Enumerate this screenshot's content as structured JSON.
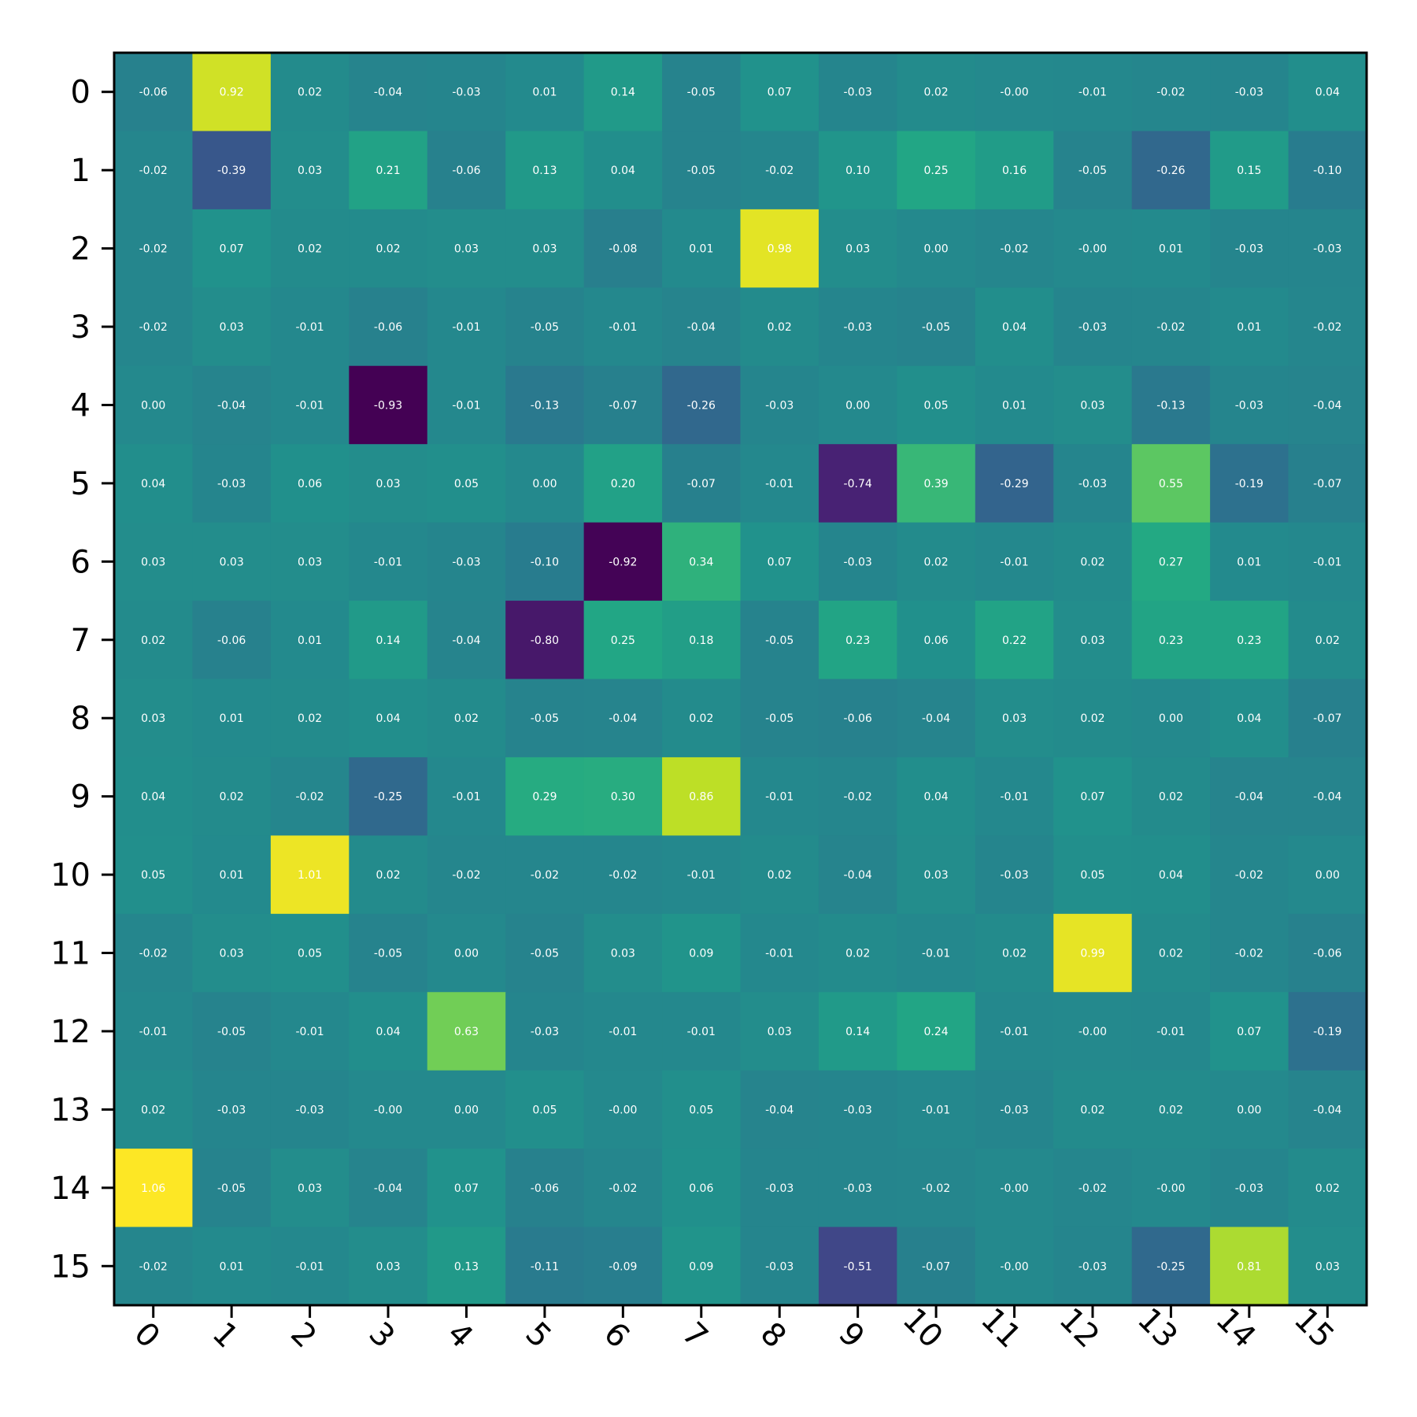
{
  "chart_data": {
    "type": "heatmap",
    "title": "",
    "xlabel": "",
    "ylabel": "",
    "x_categories": [
      "0",
      "1",
      "2",
      "3",
      "4",
      "5",
      "6",
      "7",
      "8",
      "9",
      "10",
      "11",
      "12",
      "13",
      "14",
      "15"
    ],
    "y_categories": [
      "0",
      "1",
      "2",
      "3",
      "4",
      "5",
      "6",
      "7",
      "8",
      "9",
      "10",
      "11",
      "12",
      "13",
      "14",
      "15"
    ],
    "colormap": "viridis",
    "value_range": [
      -0.93,
      1.06
    ],
    "grid": false,
    "colorbar": false,
    "x_tick_rotation_deg": 45,
    "values": [
      [
        -0.06,
        0.92,
        0.02,
        -0.04,
        -0.03,
        0.01,
        0.14,
        -0.05,
        0.07,
        -0.03,
        0.02,
        -0.0,
        -0.01,
        -0.02,
        -0.03,
        0.04
      ],
      [
        -0.02,
        -0.39,
        0.03,
        0.21,
        -0.06,
        0.13,
        0.04,
        -0.05,
        -0.02,
        0.1,
        0.25,
        0.16,
        -0.05,
        -0.26,
        0.15,
        -0.1
      ],
      [
        -0.02,
        0.07,
        0.02,
        0.02,
        0.03,
        0.03,
        -0.08,
        0.01,
        0.98,
        0.03,
        0.0,
        -0.02,
        -0.0,
        0.01,
        -0.03,
        -0.03
      ],
      [
        -0.02,
        0.03,
        -0.01,
        -0.06,
        -0.01,
        -0.05,
        -0.01,
        -0.04,
        0.02,
        -0.03,
        -0.05,
        0.04,
        -0.03,
        -0.02,
        0.01,
        -0.02
      ],
      [
        0.0,
        -0.04,
        -0.01,
        -0.93,
        -0.01,
        -0.13,
        -0.07,
        -0.26,
        -0.03,
        0.0,
        0.05,
        0.01,
        0.03,
        -0.13,
        -0.03,
        -0.04
      ],
      [
        0.04,
        -0.03,
        0.06,
        0.03,
        0.05,
        0.0,
        0.2,
        -0.07,
        -0.01,
        -0.74,
        0.39,
        -0.29,
        -0.03,
        0.55,
        -0.19,
        -0.07
      ],
      [
        0.03,
        0.03,
        0.03,
        -0.01,
        -0.03,
        -0.1,
        -0.92,
        0.34,
        0.07,
        -0.03,
        0.02,
        -0.01,
        0.02,
        0.27,
        0.01,
        -0.01
      ],
      [
        0.02,
        -0.06,
        0.01,
        0.14,
        -0.04,
        -0.8,
        0.25,
        0.18,
        -0.05,
        0.23,
        0.06,
        0.22,
        0.03,
        0.23,
        0.23,
        0.02
      ],
      [
        0.03,
        0.01,
        0.02,
        0.04,
        0.02,
        -0.05,
        -0.04,
        0.02,
        -0.05,
        -0.06,
        -0.04,
        0.03,
        0.02,
        0.0,
        0.04,
        -0.07
      ],
      [
        0.04,
        0.02,
        -0.02,
        -0.25,
        -0.01,
        0.29,
        0.3,
        0.86,
        -0.01,
        -0.02,
        0.04,
        -0.01,
        0.07,
        0.02,
        -0.04,
        -0.04
      ],
      [
        0.05,
        0.01,
        1.01,
        0.02,
        -0.02,
        -0.02,
        -0.02,
        -0.01,
        0.02,
        -0.04,
        0.03,
        -0.03,
        0.05,
        0.04,
        -0.02,
        0.0
      ],
      [
        -0.02,
        0.03,
        0.05,
        -0.05,
        0.0,
        -0.05,
        0.03,
        0.09,
        -0.01,
        0.02,
        -0.01,
        0.02,
        0.99,
        0.02,
        -0.02,
        -0.06
      ],
      [
        -0.01,
        -0.05,
        -0.01,
        0.04,
        0.63,
        -0.03,
        -0.01,
        -0.01,
        0.03,
        0.14,
        0.24,
        -0.01,
        -0.0,
        -0.01,
        0.07,
        -0.19
      ],
      [
        0.02,
        -0.03,
        -0.03,
        -0.0,
        0.0,
        0.05,
        -0.0,
        0.05,
        -0.04,
        -0.03,
        -0.01,
        -0.03,
        0.02,
        0.02,
        0.0,
        -0.04
      ],
      [
        1.06,
        -0.05,
        0.03,
        -0.04,
        0.07,
        -0.06,
        -0.02,
        0.06,
        -0.03,
        -0.03,
        -0.02,
        -0.0,
        -0.02,
        -0.0,
        -0.03,
        0.02
      ],
      [
        -0.02,
        0.01,
        -0.01,
        0.03,
        0.13,
        -0.11,
        -0.09,
        0.09,
        -0.03,
        -0.51,
        -0.07,
        -0.0,
        -0.03,
        -0.25,
        0.81,
        0.03
      ]
    ]
  }
}
